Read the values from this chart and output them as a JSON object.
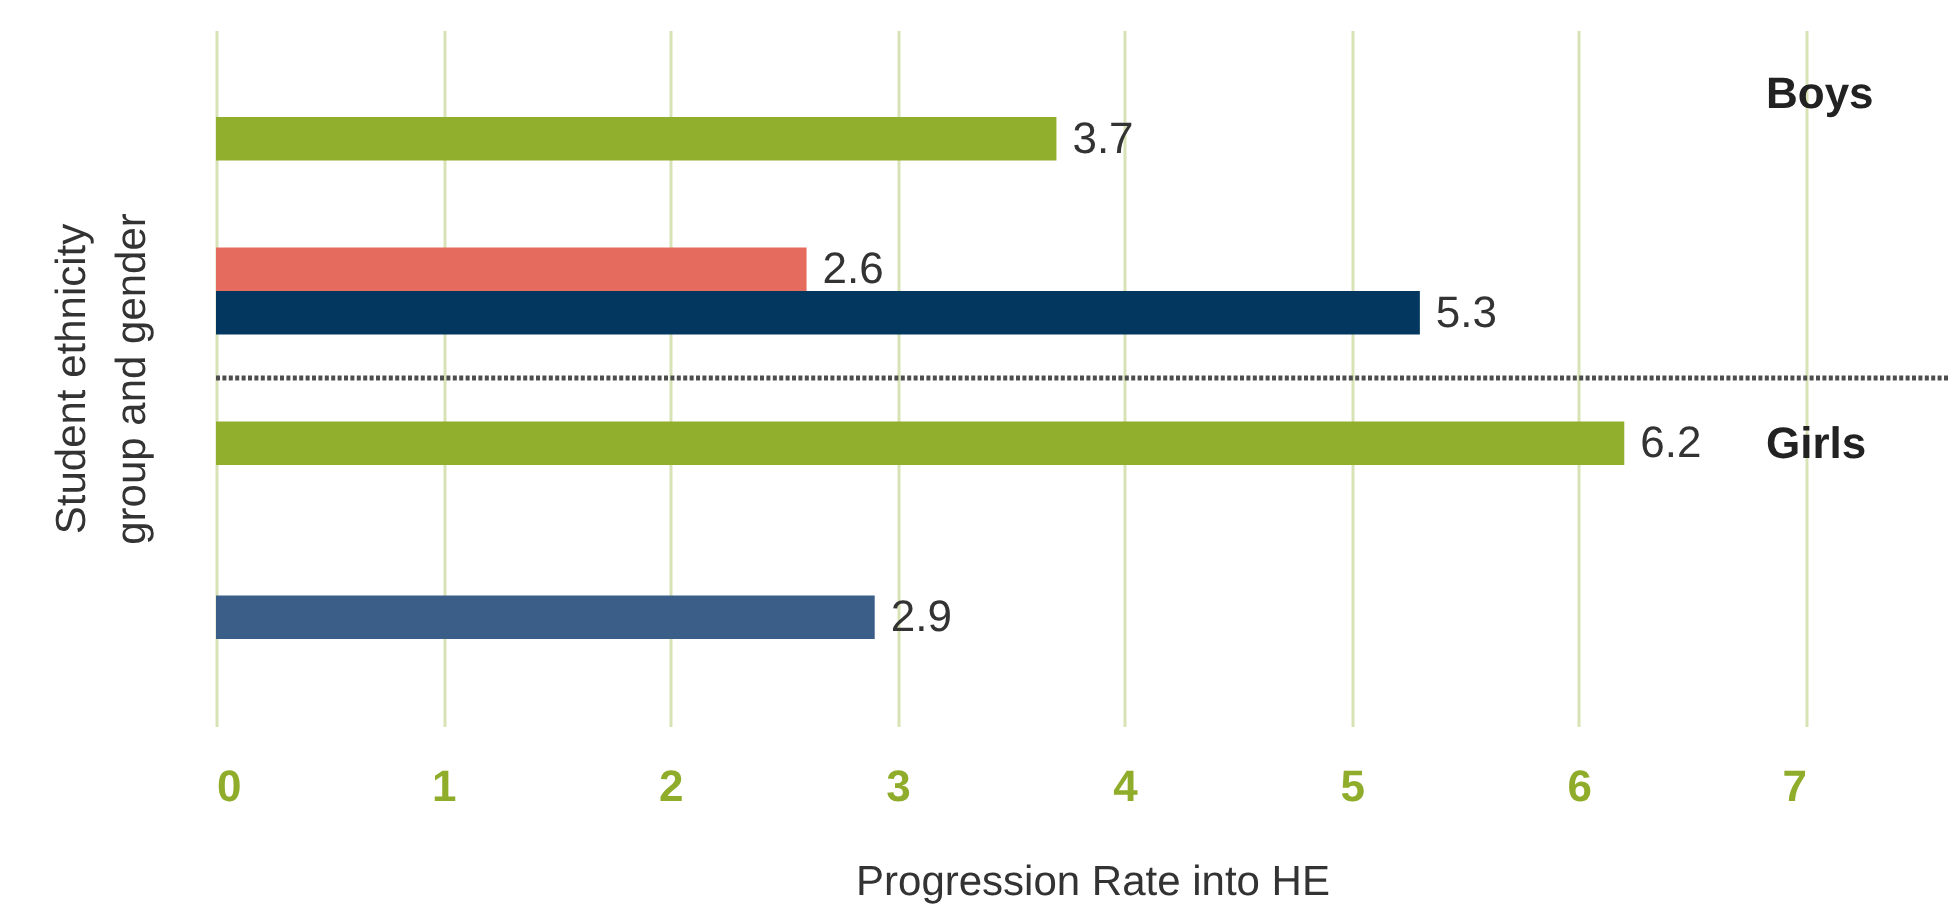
{
  "chart_data": {
    "type": "bar",
    "orientation": "horizontal",
    "categories": [
      null,
      null,
      null,
      null,
      null,
      null,
      null,
      null,
      null,
      null,
      null,
      null,
      null,
      null,
      null,
      null
    ],
    "values": [
      null,
      null,
      3.7,
      null,
      null,
      2.6,
      5.3,
      null,
      null,
      6.2,
      null,
      null,
      null,
      2.9,
      null,
      null
    ],
    "colors": [
      null,
      null,
      "#92ae2d",
      null,
      null,
      "#e56b5f",
      "#04375f",
      null,
      null,
      "#92ae2d",
      null,
      null,
      null,
      "#3a5e87",
      null,
      null
    ],
    "xlabel": "Progression Rate into HE",
    "ylabel": "Student ethnicity group and gender",
    "xlim": [
      0,
      7
    ],
    "xticks": [
      0,
      1,
      2,
      3,
      4,
      5,
      6,
      7
    ],
    "grid": "x",
    "tick_labels": "x",
    "data_labels": true,
    "annotations": [
      "Boys",
      "Girls"
    ]
  }
}
